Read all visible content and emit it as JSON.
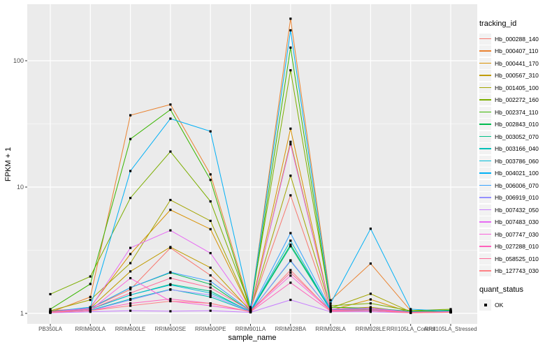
{
  "figure": {
    "xlabel": "sample_name",
    "ylabel": "FPKM + 1",
    "legend_title": "tracking_id",
    "legend2_title": "quant_status",
    "legend2_items": [
      {
        "label": "OK"
      }
    ]
  },
  "theme": {
    "panel_bg": "#EBEBEB",
    "grid_color": "#FFFFFF",
    "tick_color": "#333333",
    "tick_label_color": "#4D4D4D",
    "legend_key_bg": "#F2F2F2",
    "point_color": "#000000"
  },
  "chart_data": {
    "type": "line",
    "x_categories": [
      "PB350LA",
      "RRIM600LA",
      "RRIM600LE",
      "RRIM600SE",
      "RRIM600PE",
      "RRIM901LA",
      "RRIM928BA",
      "RRIM928LA",
      "RRIM928LE",
      "RRII105LA_Control",
      "RRII105LA_Stressed"
    ],
    "xlabel": "sample_name",
    "ylabel": "FPKM + 1",
    "y_scale": "log10",
    "y_ticks": [
      1,
      10,
      100
    ],
    "y_minor_gridlines": [
      3.162,
      31.62
    ],
    "ylim": [
      0.83,
      280
    ],
    "grid": true,
    "legend_position": "right",
    "point_shape": "filled-square",
    "quant_status": "OK",
    "series": [
      {
        "name": "Hb_000288_140",
        "color": "#F8766D",
        "values": [
          1.05,
          1.1,
          1.55,
          3.3,
          2.0,
          1.08,
          8.6,
          1.05,
          1.08,
          1.02,
          1.03
        ]
      },
      {
        "name": "Hb_000407_110",
        "color": "#EA8331",
        "values": [
          1.02,
          1.35,
          37.0,
          45.0,
          12.6,
          1.1,
          215.0,
          1.27,
          2.48,
          1.05,
          1.02
        ]
      },
      {
        "name": "Hb_000441_170",
        "color": "#D89000",
        "values": [
          1.02,
          1.12,
          2.95,
          6.6,
          4.64,
          1.06,
          29.0,
          1.06,
          1.29,
          1.02,
          1.02
        ]
      },
      {
        "name": "Hb_000567_310",
        "color": "#C09B00",
        "values": [
          1.03,
          1.1,
          2.15,
          3.35,
          2.3,
          1.05,
          22.8,
          1.08,
          1.12,
          1.02,
          1.03
        ]
      },
      {
        "name": "Hb_001405_100",
        "color": "#A3A500",
        "values": [
          1.05,
          1.28,
          2.5,
          7.9,
          5.4,
          1.07,
          12.3,
          1.1,
          1.43,
          1.03,
          1.05
        ]
      },
      {
        "name": "Hb_002272_160",
        "color": "#7CAE00",
        "values": [
          1.42,
          1.96,
          8.2,
          19.1,
          7.7,
          1.12,
          84.0,
          1.15,
          1.2,
          1.05,
          1.08
        ]
      },
      {
        "name": "Hb_002374_110",
        "color": "#39B600",
        "values": [
          1.08,
          1.71,
          24.0,
          41.0,
          11.4,
          1.05,
          127.0,
          1.12,
          1.1,
          1.04,
          1.06
        ]
      },
      {
        "name": "Hb_002843_010",
        "color": "#00BB4E",
        "values": [
          1.04,
          1.1,
          1.6,
          2.1,
          1.7,
          1.04,
          3.5,
          1.08,
          1.06,
          1.02,
          1.05
        ]
      },
      {
        "name": "Hb_003052_070",
        "color": "#00C087",
        "values": [
          1.03,
          1.08,
          1.4,
          1.7,
          1.5,
          1.03,
          3.4,
          1.06,
          1.08,
          1.02,
          1.04
        ]
      },
      {
        "name": "Hb_003166_040",
        "color": "#00C0B8",
        "values": [
          1.02,
          1.06,
          1.3,
          1.55,
          1.35,
          1.03,
          2.6,
          1.05,
          1.05,
          1.02,
          1.03
        ]
      },
      {
        "name": "Hb_003786_060",
        "color": "#00BCD8",
        "values": [
          1.02,
          1.08,
          1.4,
          1.68,
          1.45,
          1.04,
          3.76,
          1.06,
          1.1,
          1.02,
          1.03
        ]
      },
      {
        "name": "Hb_004021_100",
        "color": "#00B0F6",
        "values": [
          1.03,
          1.12,
          13.4,
          34.8,
          27.6,
          1.1,
          174.0,
          1.2,
          4.68,
          1.08,
          1.04
        ]
      },
      {
        "name": "Hb_006006_070",
        "color": "#35A2FF",
        "values": [
          1.02,
          1.1,
          1.6,
          2.12,
          1.8,
          1.05,
          4.32,
          1.08,
          1.1,
          1.03,
          1.03
        ]
      },
      {
        "name": "Hb_006919_010",
        "color": "#9590FF",
        "values": [
          1.02,
          1.05,
          1.28,
          1.54,
          1.4,
          1.03,
          2.63,
          1.05,
          1.06,
          1.02,
          1.02
        ]
      },
      {
        "name": "Hb_007432_050",
        "color": "#C77CFF",
        "values": [
          1.01,
          1.03,
          1.05,
          1.04,
          1.05,
          1.02,
          1.28,
          1.03,
          1.03,
          1.01,
          1.02
        ]
      },
      {
        "name": "Hb_007483_030",
        "color": "#E76BF3",
        "values": [
          1.03,
          1.1,
          3.3,
          4.54,
          3.0,
          1.06,
          21.8,
          1.08,
          1.1,
          1.02,
          1.03
        ]
      },
      {
        "name": "Hb_007747_030",
        "color": "#FA62DB",
        "values": [
          1.02,
          1.06,
          1.9,
          1.25,
          1.15,
          1.04,
          1.99,
          1.05,
          1.05,
          1.02,
          1.02
        ]
      },
      {
        "name": "Hb_027288_010",
        "color": "#FF62BC",
        "values": [
          1.02,
          1.05,
          1.2,
          1.3,
          1.2,
          1.03,
          1.75,
          1.04,
          1.05,
          1.02,
          1.02
        ]
      },
      {
        "name": "Hb_058525_010",
        "color": "#FF6A98",
        "values": [
          1.03,
          1.08,
          1.45,
          1.9,
          1.6,
          1.05,
          2.1,
          1.06,
          1.08,
          1.02,
          1.03
        ]
      },
      {
        "name": "Hb_127743_030",
        "color": "#FE8185",
        "values": [
          1.02,
          1.05,
          1.15,
          1.25,
          1.2,
          1.03,
          2.2,
          1.04,
          1.05,
          1.01,
          1.02
        ]
      }
    ]
  }
}
